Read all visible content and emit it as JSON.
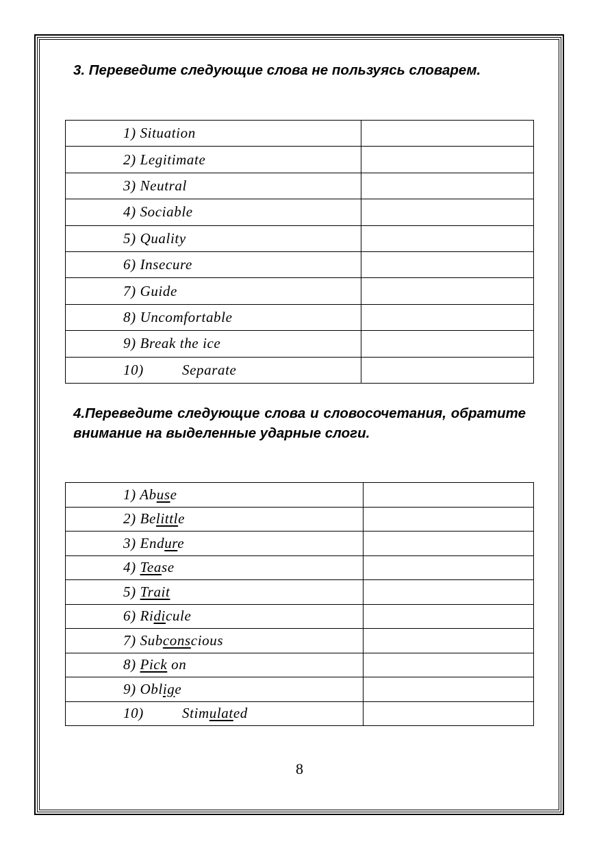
{
  "exercise3": {
    "heading": "3. Переведите следующие слова не пользуясь словарем.",
    "items": [
      {
        "num": "1)",
        "pre": "Situation",
        "stress": "",
        "post": "",
        "translation": ""
      },
      {
        "num": "2)",
        "pre": "Legitimate",
        "stress": "",
        "post": "",
        "translation": ""
      },
      {
        "num": "3)",
        "pre": "Neutral",
        "stress": "",
        "post": "",
        "translation": ""
      },
      {
        "num": "4)",
        "pre": "Sociable",
        "stress": "",
        "post": "",
        "translation": ""
      },
      {
        "num": "5)",
        "pre": "Quality",
        "stress": "",
        "post": "",
        "translation": ""
      },
      {
        "num": "6)",
        "pre": "Insecure",
        "stress": "",
        "post": "",
        "translation": ""
      },
      {
        "num": "7)",
        "pre": "Guide",
        "stress": "",
        "post": "",
        "translation": ""
      },
      {
        "num": "8)",
        "pre": "Uncomfortable",
        "stress": "",
        "post": "",
        "translation": ""
      },
      {
        "num": "9)",
        "pre": "Break the ice",
        "stress": "",
        "post": "",
        "translation": ""
      },
      {
        "num": "10)",
        "pre": "Separate",
        "stress": "",
        "post": "",
        "translation": ""
      }
    ]
  },
  "exercise4": {
    "heading": "4.Переведите следующие слова и словосочетания, обратите внимание на выделенные ударные слоги.",
    "items": [
      {
        "num": "1)",
        "pre": "Ab",
        "stress": "us",
        "post": "e",
        "translation": ""
      },
      {
        "num": "2)",
        "pre": "Be",
        "stress": "littl",
        "post": "e",
        "translation": ""
      },
      {
        "num": "3)",
        "pre": "End",
        "stress": "ur",
        "post": "e",
        "translation": ""
      },
      {
        "num": "4)",
        "pre": "",
        "stress": "Tea",
        "post": "se",
        "translation": ""
      },
      {
        "num": "5)",
        "pre": "",
        "stress": "Trait",
        "post": "",
        "translation": ""
      },
      {
        "num": "6)",
        "pre": "Ri",
        "stress": "di",
        "post": "cule",
        "translation": ""
      },
      {
        "num": "7)",
        "pre": "Sub",
        "stress": "cons",
        "post": "cious",
        "translation": ""
      },
      {
        "num": "8)",
        "pre": "",
        "stress": "Pick",
        "post": " on",
        "translation": ""
      },
      {
        "num": "9)",
        "pre": "Obl",
        "stress": "ig",
        "post": "e",
        "translation": ""
      },
      {
        "num": "10)",
        "pre": "Stim",
        "stress": "ulat",
        "post": "ed",
        "translation": ""
      }
    ]
  },
  "page_number": "8"
}
